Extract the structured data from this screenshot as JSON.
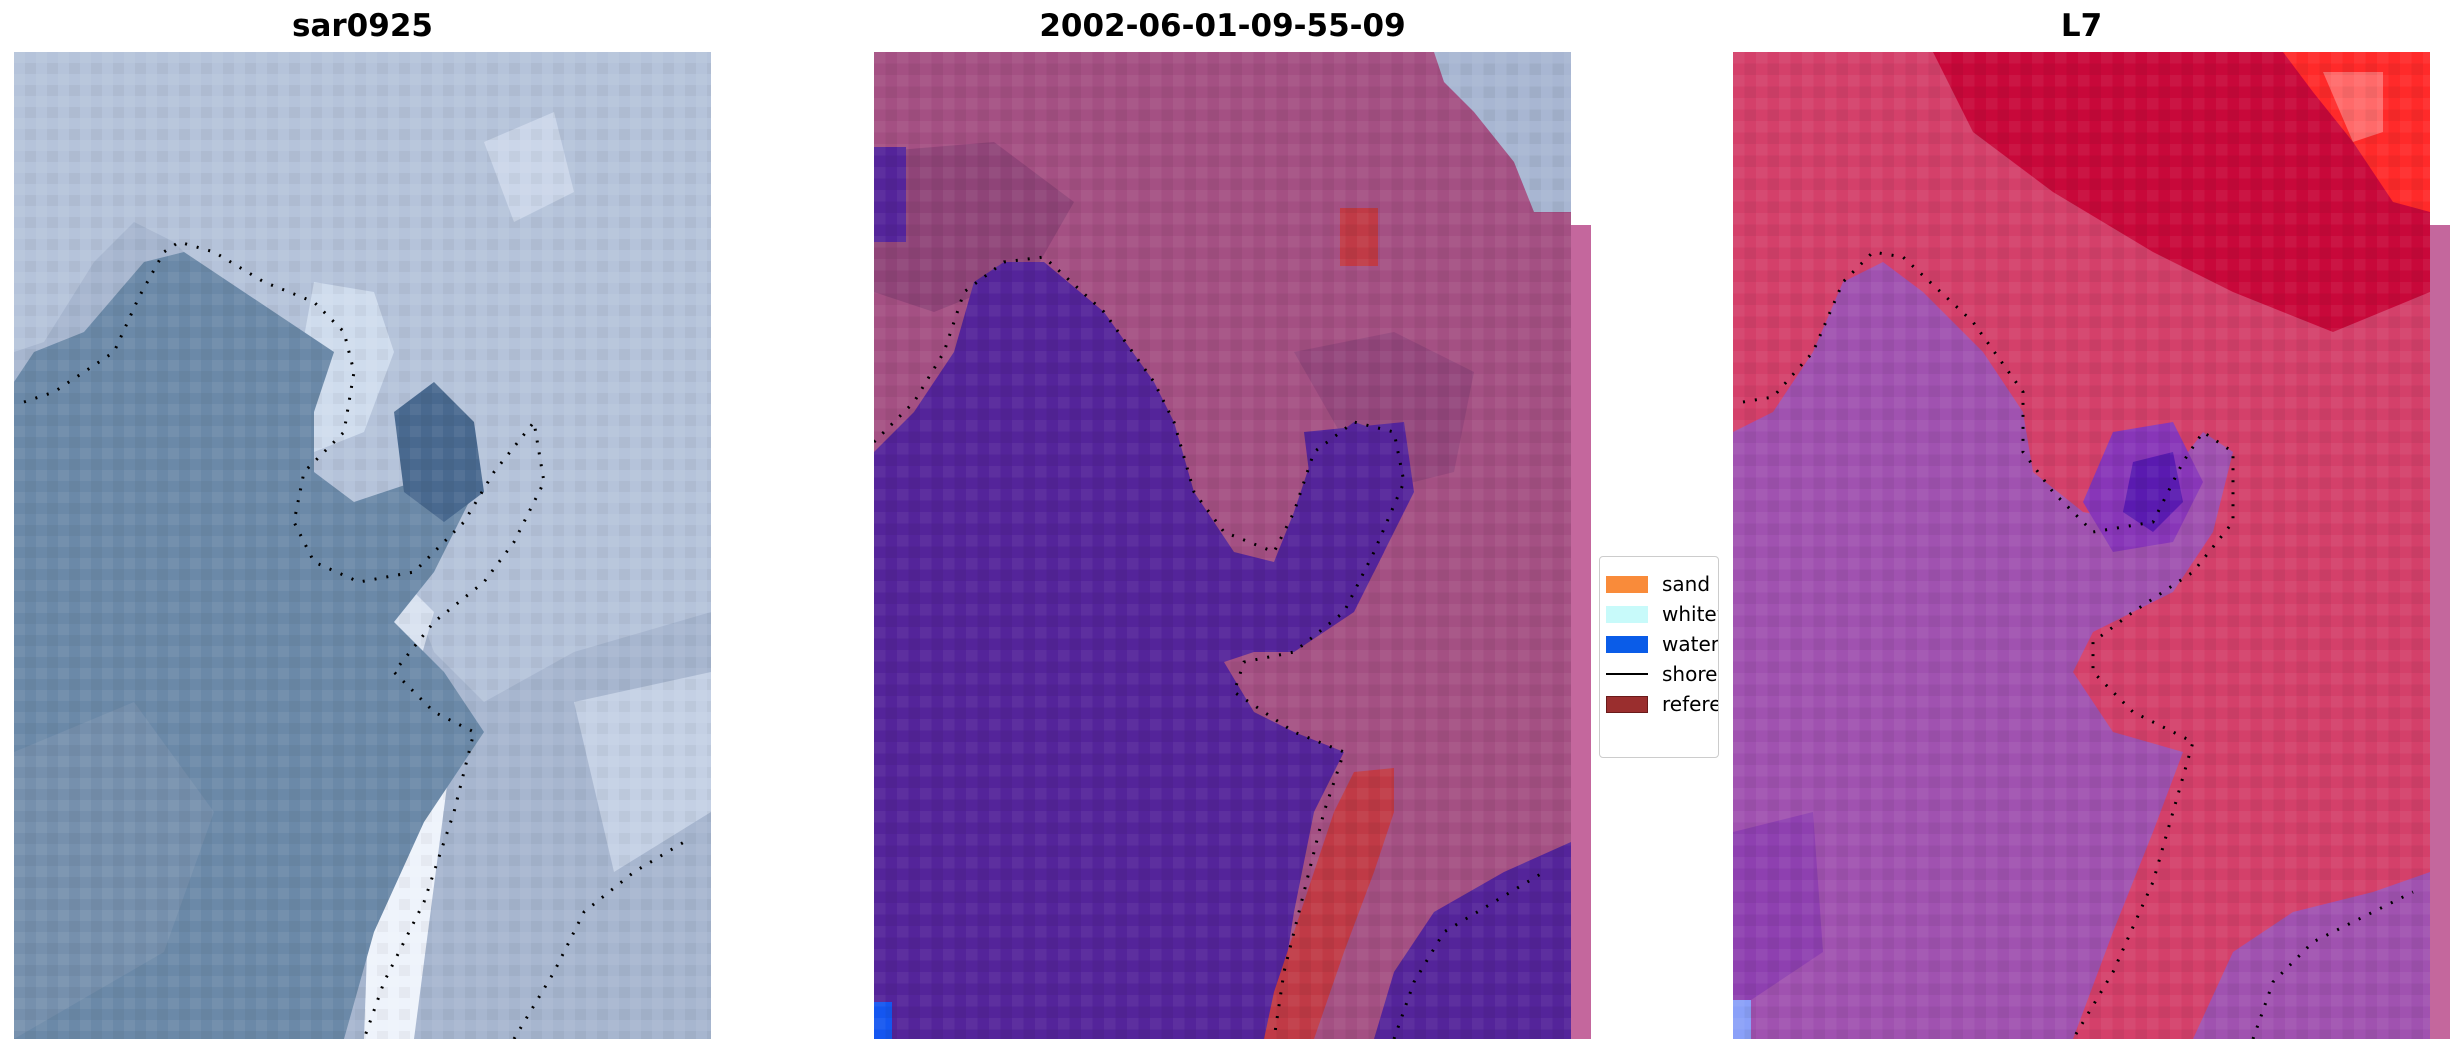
{
  "panels": [
    {
      "title": "sar0925",
      "palette": "blue-gray RGB composite",
      "colors": {
        "water": "#6b89a8",
        "land": "#a7b6cf",
        "bright": "#e6eef8"
      }
    },
    {
      "title": "2002-06-01-09-55-09",
      "palette": "classified overlay",
      "colors": {
        "water": "#54249a",
        "land": "#a45083",
        "sand": "#c03a46",
        "whitewater": "#a8b6d2",
        "pale_strip": "#c4679d",
        "blue_cell": "#1456f0"
      }
    },
    {
      "title": "L7",
      "palette": "red-purple composite",
      "colors": {
        "water": "#a052b0",
        "land": "#d4406a",
        "deep_red": "#c8083a",
        "bright_red": "#ff2a2a",
        "dark_purple": "#5a1ab0",
        "blue_cell": "#8aa0f8"
      }
    }
  ],
  "legend": {
    "items": [
      {
        "label": "sand",
        "color": "#f98b3a",
        "type": "patch"
      },
      {
        "label": "whitewater",
        "color": "#c8fafa",
        "type": "patch"
      },
      {
        "label": "water",
        "color": "#0a5ce8",
        "type": "patch"
      },
      {
        "label": "shoreline",
        "color": "#000000",
        "type": "line"
      },
      {
        "label": "reference shoreline buffer",
        "color": "#9a2e2e",
        "type": "patch"
      }
    ]
  }
}
